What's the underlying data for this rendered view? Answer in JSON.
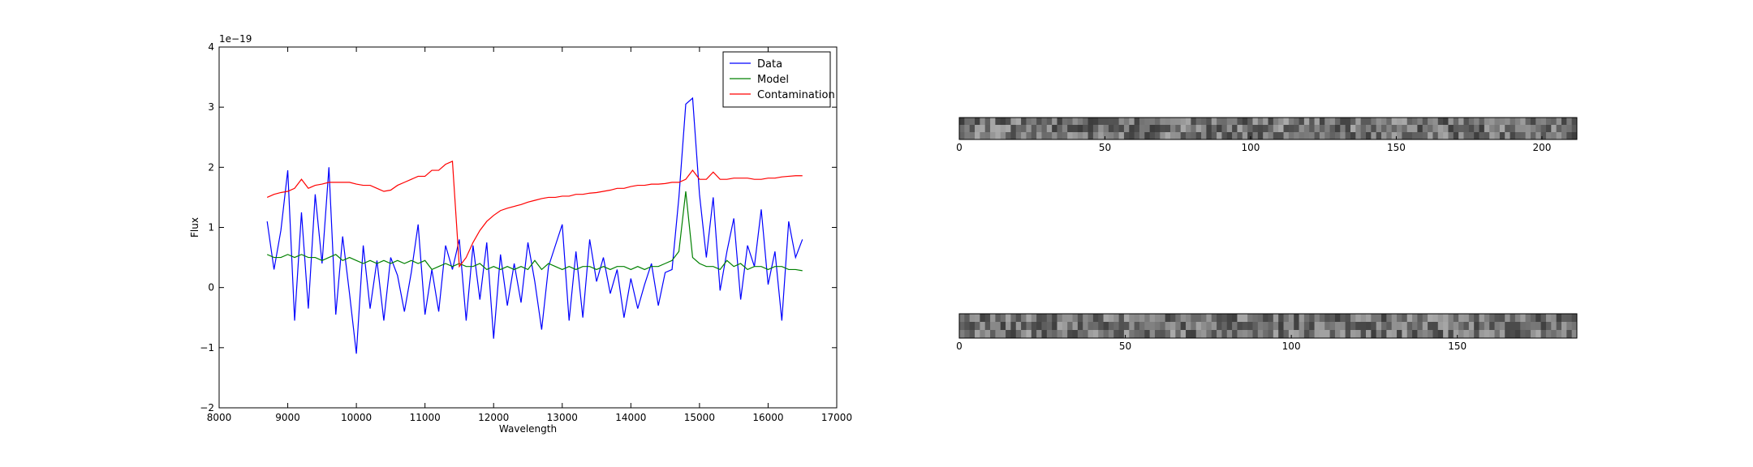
{
  "chart_data": [
    {
      "type": "line",
      "xlabel": "Wavelength",
      "ylabel": "Flux",
      "offset_text": "1e−19",
      "x": [
        8700,
        8800,
        8900,
        9000,
        9100,
        9200,
        9300,
        9400,
        9500,
        9600,
        9700,
        9800,
        9900,
        10000,
        10100,
        10200,
        10300,
        10400,
        10500,
        10600,
        10700,
        10800,
        10900,
        11000,
        11100,
        11200,
        11300,
        11400,
        11500,
        11600,
        11700,
        11800,
        11900,
        12000,
        12100,
        12200,
        12300,
        12400,
        12500,
        12600,
        12700,
        12800,
        12900,
        13000,
        13100,
        13200,
        13300,
        13400,
        13500,
        13600,
        13700,
        13800,
        13900,
        14000,
        14100,
        14200,
        14300,
        14400,
        14500,
        14600,
        14700,
        14800,
        14900,
        15000,
        15100,
        15200,
        15300,
        15400,
        15500,
        15600,
        15700,
        15800,
        15900,
        16000,
        16100,
        16200,
        16300,
        16400,
        16500
      ],
      "series": [
        {
          "name": "Data",
          "color": "#0000ff",
          "values": [
            1.1,
            0.3,
            0.95,
            1.95,
            -0.55,
            1.25,
            -0.35,
            1.55,
            0.4,
            2.0,
            -0.45,
            0.85,
            -0.1,
            -1.1,
            0.7,
            -0.35,
            0.45,
            -0.55,
            0.5,
            0.2,
            -0.4,
            0.25,
            1.05,
            -0.45,
            0.3,
            -0.4,
            0.7,
            0.3,
            0.8,
            -0.55,
            0.7,
            -0.2,
            0.75,
            -0.85,
            0.55,
            -0.3,
            0.4,
            -0.25,
            0.75,
            0.1,
            -0.7,
            0.35,
            0.7,
            1.05,
            -0.55,
            0.6,
            -0.5,
            0.8,
            0.1,
            0.5,
            -0.1,
            0.3,
            -0.5,
            0.15,
            -0.35,
            0.05,
            0.4,
            -0.3,
            0.25,
            0.3,
            1.5,
            3.05,
            3.15,
            1.55,
            0.5,
            1.5,
            -0.05,
            0.6,
            1.15,
            -0.2,
            0.7,
            0.35,
            1.3,
            0.05,
            0.6,
            -0.55,
            1.1,
            0.5,
            0.8
          ]
        },
        {
          "name": "Model",
          "color": "#008000",
          "values": [
            0.55,
            0.5,
            0.5,
            0.55,
            0.5,
            0.55,
            0.5,
            0.5,
            0.45,
            0.5,
            0.55,
            0.45,
            0.5,
            0.45,
            0.4,
            0.45,
            0.4,
            0.45,
            0.4,
            0.45,
            0.4,
            0.45,
            0.4,
            0.45,
            0.3,
            0.35,
            0.4,
            0.35,
            0.4,
            0.35,
            0.35,
            0.4,
            0.3,
            0.35,
            0.3,
            0.35,
            0.3,
            0.35,
            0.3,
            0.45,
            0.3,
            0.4,
            0.35,
            0.3,
            0.35,
            0.3,
            0.35,
            0.35,
            0.3,
            0.35,
            0.3,
            0.35,
            0.35,
            0.3,
            0.35,
            0.3,
            0.35,
            0.35,
            0.4,
            0.45,
            0.6,
            1.6,
            0.5,
            0.4,
            0.35,
            0.35,
            0.3,
            0.45,
            0.35,
            0.4,
            0.3,
            0.35,
            0.35,
            0.3,
            0.35,
            0.35,
            0.3,
            0.3,
            0.28
          ]
        },
        {
          "name": "Contamination",
          "color": "#ff0000",
          "values": [
            1.5,
            1.55,
            1.58,
            1.6,
            1.65,
            1.8,
            1.65,
            1.7,
            1.72,
            1.75,
            1.75,
            1.75,
            1.75,
            1.72,
            1.7,
            1.7,
            1.65,
            1.6,
            1.62,
            1.7,
            1.75,
            1.8,
            1.85,
            1.85,
            1.95,
            1.95,
            2.05,
            2.1,
            0.35,
            0.5,
            0.75,
            0.95,
            1.1,
            1.2,
            1.28,
            1.32,
            1.35,
            1.38,
            1.42,
            1.45,
            1.48,
            1.5,
            1.5,
            1.52,
            1.52,
            1.55,
            1.55,
            1.57,
            1.58,
            1.6,
            1.62,
            1.65,
            1.65,
            1.68,
            1.7,
            1.7,
            1.72,
            1.72,
            1.73,
            1.75,
            1.75,
            1.8,
            1.95,
            1.8,
            1.8,
            1.92,
            1.8,
            1.8,
            1.82,
            1.82,
            1.82,
            1.8,
            1.8,
            1.82,
            1.82,
            1.84,
            1.85,
            1.86,
            1.86
          ]
        }
      ],
      "xlim": [
        8000,
        17000
      ],
      "xticks": [
        8000,
        9000,
        10000,
        11000,
        12000,
        13000,
        14000,
        15000,
        16000,
        17000
      ],
      "ylim": [
        -2,
        4
      ],
      "yticks": [
        {
          "value": -2,
          "label": "−2"
        },
        {
          "value": -1,
          "label": "−1"
        },
        0,
        1,
        2,
        3,
        4
      ],
      "legend": "upper right"
    },
    {
      "type": "image",
      "xlim": [
        0,
        212
      ],
      "xticks": [
        0,
        50,
        100,
        150,
        200
      ]
    },
    {
      "type": "image",
      "xlim": [
        0,
        186
      ],
      "xticks": [
        0,
        50,
        100,
        150
      ]
    }
  ]
}
